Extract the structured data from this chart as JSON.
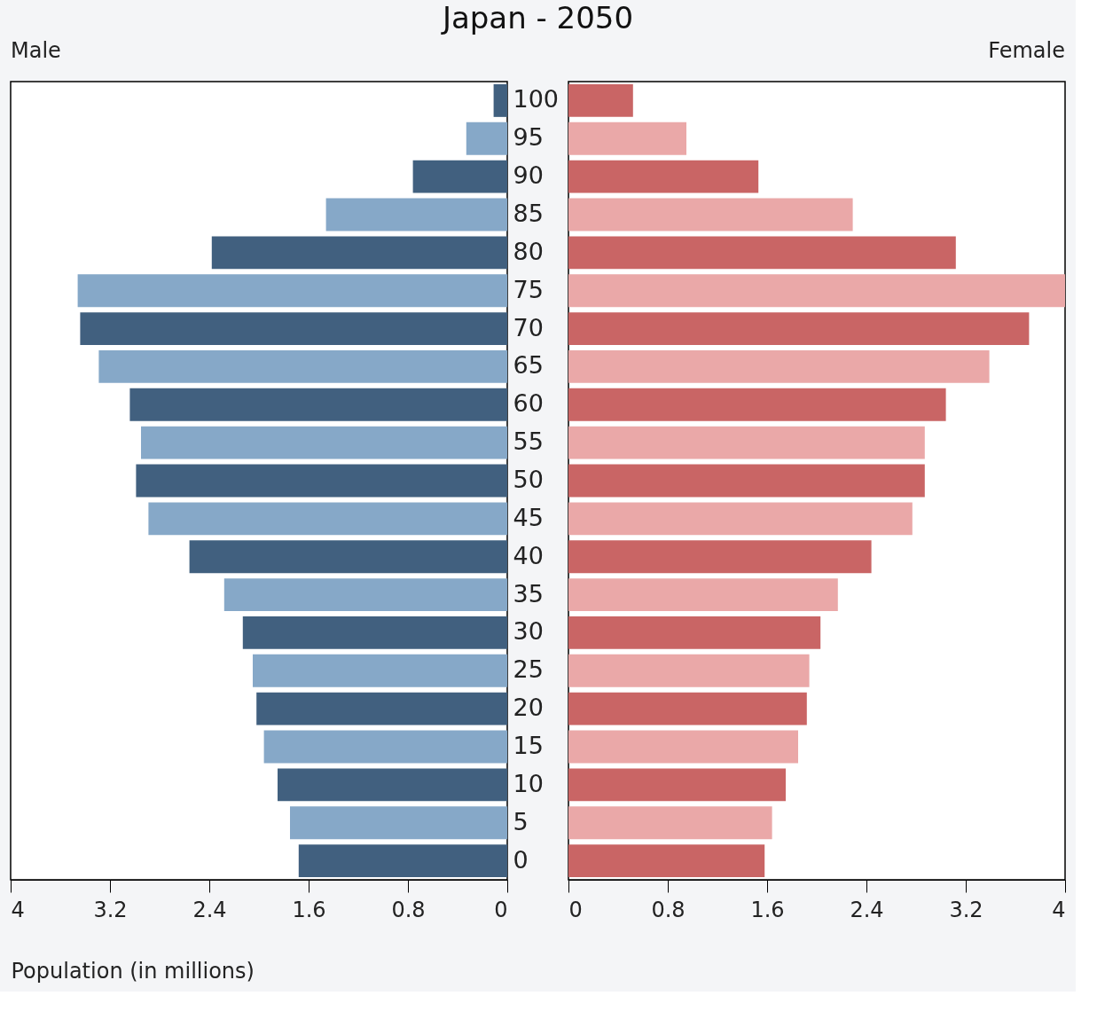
{
  "chart_data": [
    {
      "type": "bar",
      "orientation": "horizontal",
      "title": "Japan - 2050",
      "xlabel": "Population (in millions)",
      "categories": [
        "100",
        "95",
        "90",
        "85",
        "80",
        "75",
        "70",
        "65",
        "60",
        "55",
        "50",
        "45",
        "40",
        "35",
        "30",
        "25",
        "20",
        "15",
        "10",
        "5",
        "0"
      ],
      "series": [
        {
          "name": "Male",
          "values": [
            0.11,
            0.33,
            0.76,
            1.46,
            2.38,
            3.46,
            3.44,
            3.29,
            3.04,
            2.95,
            2.99,
            2.89,
            2.56,
            2.28,
            2.13,
            2.05,
            2.02,
            1.96,
            1.85,
            1.75,
            1.68
          ],
          "colors": [
            "#41607f",
            "#86a8c8",
            "#41607f",
            "#86a8c8",
            "#41607f",
            "#86a8c8",
            "#41607f",
            "#86a8c8",
            "#41607f",
            "#86a8c8",
            "#41607f",
            "#86a8c8",
            "#41607f",
            "#86a8c8",
            "#41607f",
            "#86a8c8",
            "#41607f",
            "#86a8c8",
            "#41607f",
            "#86a8c8",
            "#41607f"
          ]
        }
      ],
      "xlim": [
        4,
        0
      ],
      "xticks": [
        4,
        3.2,
        2.4,
        1.6,
        0.8,
        0
      ],
      "grid": false
    },
    {
      "type": "bar",
      "orientation": "horizontal",
      "categories": [
        "100",
        "95",
        "90",
        "85",
        "80",
        "75",
        "70",
        "65",
        "60",
        "55",
        "50",
        "45",
        "40",
        "35",
        "30",
        "25",
        "20",
        "15",
        "10",
        "5",
        "0"
      ],
      "series": [
        {
          "name": "Female",
          "values": [
            0.52,
            0.95,
            1.53,
            2.29,
            3.12,
            4.0,
            3.71,
            3.39,
            3.04,
            2.87,
            2.87,
            2.77,
            2.44,
            2.17,
            2.03,
            1.94,
            1.92,
            1.85,
            1.75,
            1.64,
            1.58
          ],
          "colors": [
            "#c96565",
            "#eaa8a8",
            "#c96565",
            "#eaa8a8",
            "#c96565",
            "#eaa8a8",
            "#c96565",
            "#eaa8a8",
            "#c96565",
            "#eaa8a8",
            "#c96565",
            "#eaa8a8",
            "#c96565",
            "#eaa8a8",
            "#c96565",
            "#eaa8a8",
            "#c96565",
            "#eaa8a8",
            "#c96565",
            "#eaa8a8",
            "#c96565"
          ]
        }
      ],
      "xlim": [
        0,
        4
      ],
      "xticks": [
        0,
        0.8,
        1.6,
        2.4,
        3.2,
        4
      ],
      "tick_labels": "x",
      "grid": false
    }
  ]
}
